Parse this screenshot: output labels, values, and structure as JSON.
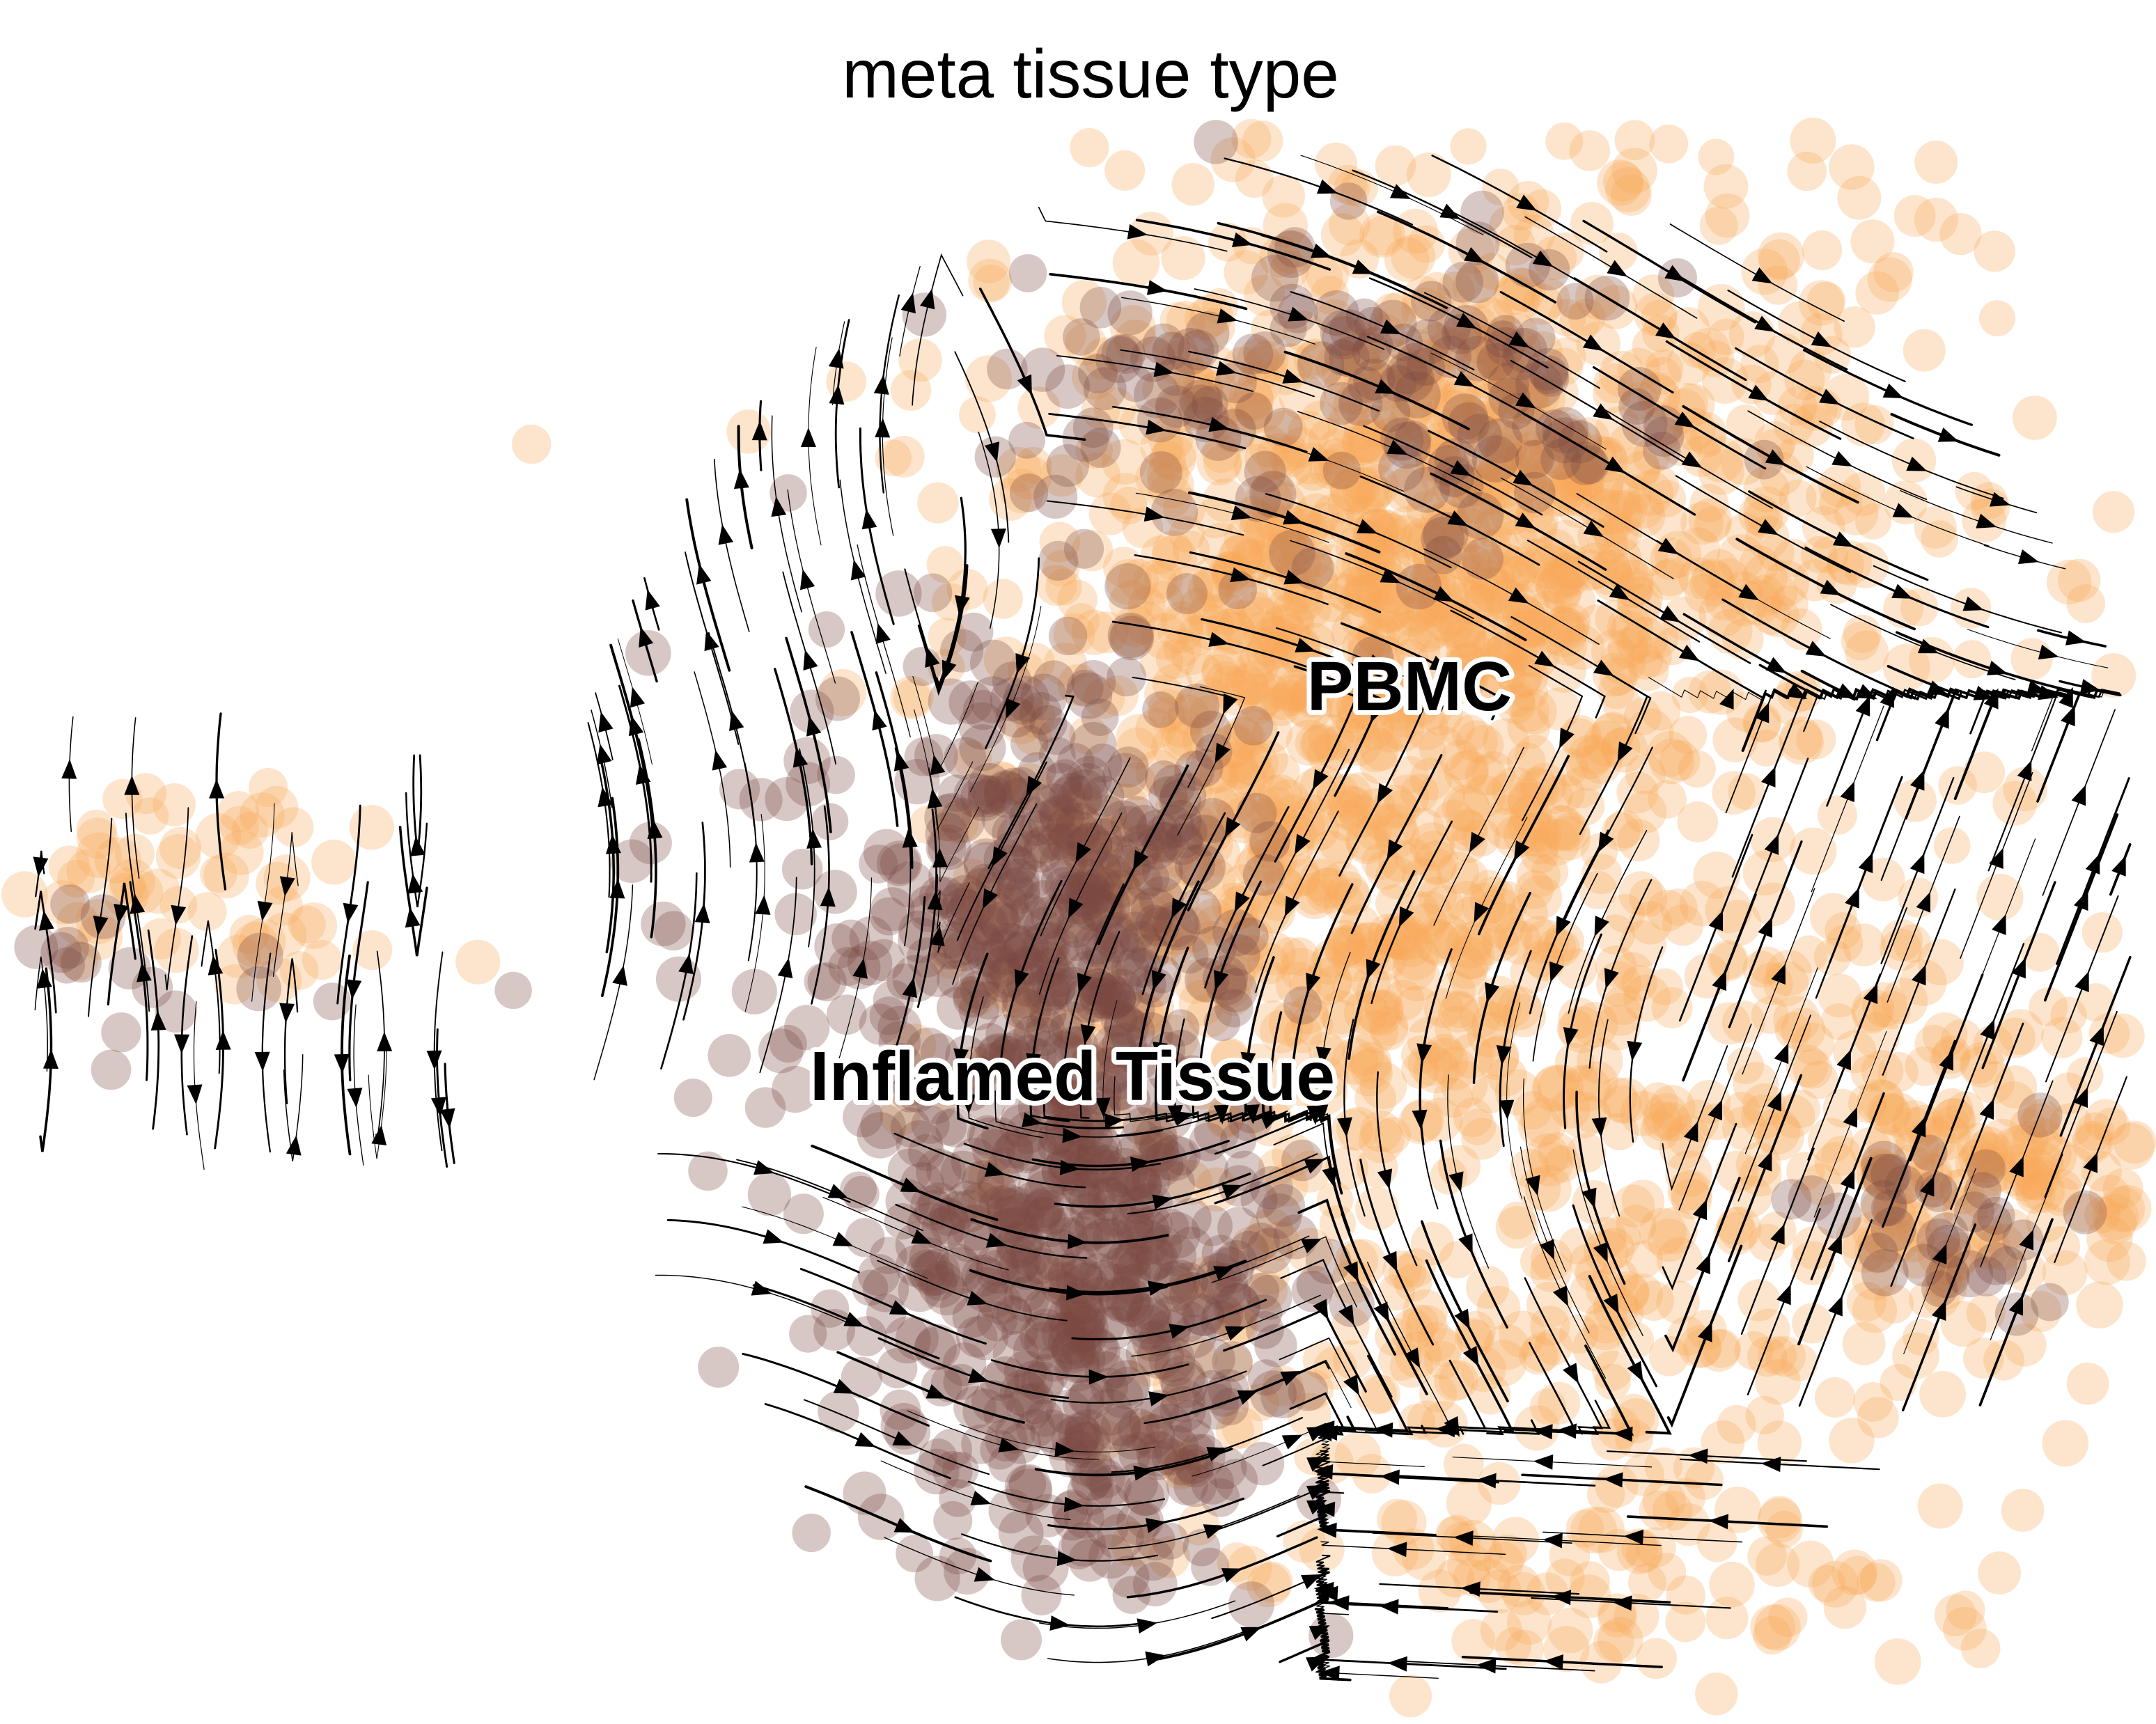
{
  "chart_data": {
    "type": "scatter",
    "title": "meta tissue type",
    "xlabel": "",
    "ylabel": "",
    "grid": false,
    "legend": "on data",
    "colors": {
      "PBMC": "#F7A95B",
      "Inflamed Tissue": "#7B4A43",
      "streamline": "#000000"
    },
    "series": [
      {
        "name": "PBMC",
        "color": "#F7A95B",
        "point_alpha": 0.3
      },
      {
        "name": "Inflamed Tissue",
        "color": "#7B4A43",
        "point_alpha": 0.3
      }
    ],
    "overlay": "velocity streamlines with arrowheads",
    "seed": 7
  }
}
